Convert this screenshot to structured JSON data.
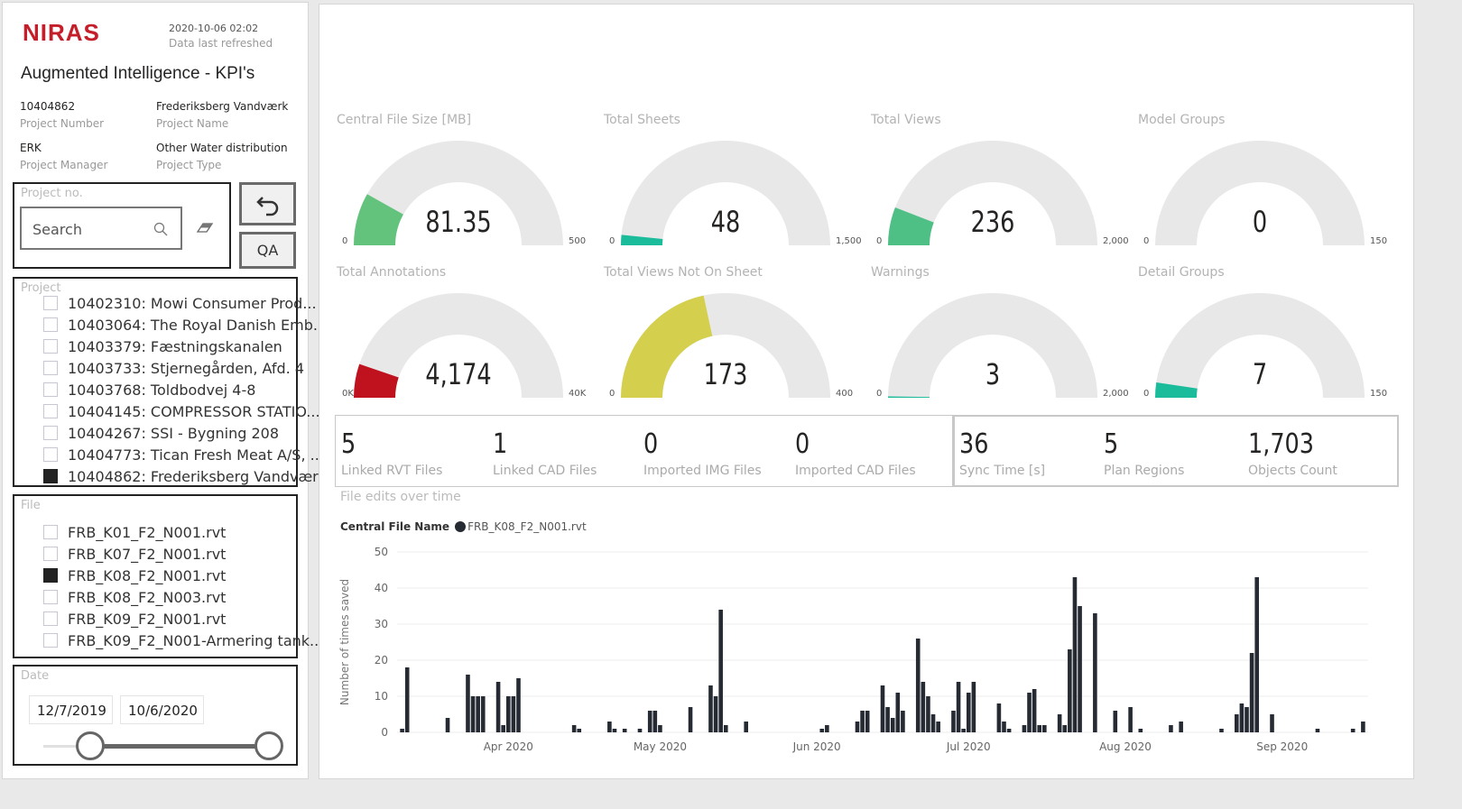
{
  "header": {
    "logo": "NIRAS",
    "refresh_date": "2020-10-06 02:02",
    "refresh_label": "Data last refreshed",
    "title": "Augmented Intelligence - KPI's"
  },
  "project_info": [
    {
      "value": "10404862",
      "label": "Project Number"
    },
    {
      "value": "Frederiksberg Vandværk",
      "label": "Project Name"
    },
    {
      "value": "ERK",
      "label": "Project Manager"
    },
    {
      "value": "Other Water distribution",
      "label": "Project Type"
    }
  ],
  "search": {
    "label": "Project no.",
    "placeholder": "Search"
  },
  "buttons": {
    "qa": "QA"
  },
  "project_slicer": {
    "label": "Project",
    "items": [
      {
        "label": "10402310: Mowi Consumer Prod...",
        "checked": false
      },
      {
        "label": "10403064: The Royal Danish Emb...",
        "checked": false
      },
      {
        "label": "10403379: Fæstningskanalen",
        "checked": false
      },
      {
        "label": "10403733: Stjernegården, Afd. 4",
        "checked": false
      },
      {
        "label": "10403768: Toldbodvej 4-8",
        "checked": false
      },
      {
        "label": "10404145: COMPRESSOR STATIO...",
        "checked": false
      },
      {
        "label": "10404267: SSI - Bygning 208",
        "checked": false
      },
      {
        "label": "10404773: Tican Fresh Meat A/S, ...",
        "checked": false
      },
      {
        "label": "10404862: Frederiksberg Vandværk",
        "checked": true
      }
    ]
  },
  "file_slicer": {
    "label": "File",
    "items": [
      {
        "label": "FRB_K01_F2_N001.rvt",
        "checked": false
      },
      {
        "label": "FRB_K07_F2_N001.rvt",
        "checked": false
      },
      {
        "label": "FRB_K08_F2_N001.rvt",
        "checked": true
      },
      {
        "label": "FRB_K08_F2_N003.rvt",
        "checked": false
      },
      {
        "label": "FRB_K09_F2_N001.rvt",
        "checked": false
      },
      {
        "label": "FRB_K09_F2_N001-Armering tank...",
        "checked": false
      }
    ]
  },
  "date_slicer": {
    "label": "Date",
    "start": "12/7/2019",
    "end": "10/6/2020"
  },
  "gauges": [
    {
      "title": "Central File Size [MB]",
      "value": 81.35,
      "display": "81.35",
      "min": "0",
      "max": "500",
      "max_value": 500,
      "color": "#63c37c"
    },
    {
      "title": "Total Sheets",
      "value": 48,
      "display": "48",
      "min": "0",
      "max": "1,500",
      "max_value": 1500,
      "color": "#1abc9c"
    },
    {
      "title": "Total Views",
      "value": 236,
      "display": "236",
      "min": "0",
      "max": "2,000",
      "max_value": 2000,
      "color": "#4fc085"
    },
    {
      "title": "Model Groups",
      "value": 0,
      "display": "0",
      "min": "0",
      "max": "150",
      "max_value": 150,
      "color": "#1abc9c"
    },
    {
      "title": "Total Annotations",
      "value": 4174,
      "display": "4,174",
      "min": "0K",
      "max": "40K",
      "max_value": 40000,
      "color": "#c0111f"
    },
    {
      "title": "Total Views Not On Sheet",
      "value": 173,
      "display": "173",
      "min": "0",
      "max": "400",
      "max_value": 400,
      "color": "#d4cf4c"
    },
    {
      "title": "Warnings",
      "value": 3,
      "display": "3",
      "min": "0",
      "max": "2,000",
      "max_value": 2000,
      "color": "#1abc9c"
    },
    {
      "title": "Detail Groups",
      "value": 7,
      "display": "7",
      "min": "0",
      "max": "150",
      "max_value": 150,
      "color": "#1abc9c"
    }
  ],
  "cards": [
    {
      "value": "5",
      "label": "Linked RVT Files"
    },
    {
      "value": "1",
      "label": "Linked CAD Files"
    },
    {
      "value": "0",
      "label": "Imported IMG Files"
    },
    {
      "value": "0",
      "label": "Imported CAD Files"
    },
    {
      "value": "36",
      "label": "Sync Time [s]"
    },
    {
      "value": "5",
      "label": "Plan Regions"
    },
    {
      "value": "1,703",
      "label": "Objects Count"
    }
  ],
  "chart_data": {
    "type": "bar",
    "title": "File edits over time",
    "legend_title": "Central File Name",
    "legend_position": "top-left",
    "series": [
      {
        "name": "FRB_K08_F2_N001.rvt",
        "color": "#252a33",
        "points": [
          [
            "2020-03-11",
            1
          ],
          [
            "2020-03-12",
            18
          ],
          [
            "2020-03-20",
            4
          ],
          [
            "2020-03-24",
            16
          ],
          [
            "2020-03-25",
            10
          ],
          [
            "2020-03-26",
            10
          ],
          [
            "2020-03-27",
            10
          ],
          [
            "2020-03-30",
            14
          ],
          [
            "2020-03-31",
            2
          ],
          [
            "2020-04-01",
            10
          ],
          [
            "2020-04-02",
            10
          ],
          [
            "2020-04-03",
            15
          ],
          [
            "2020-04-14",
            2
          ],
          [
            "2020-04-15",
            1
          ],
          [
            "2020-04-21",
            3
          ],
          [
            "2020-04-22",
            1
          ],
          [
            "2020-04-24",
            1
          ],
          [
            "2020-04-27",
            1
          ],
          [
            "2020-04-29",
            6
          ],
          [
            "2020-04-30",
            6
          ],
          [
            "2020-05-01",
            2
          ],
          [
            "2020-05-07",
            7
          ],
          [
            "2020-05-11",
            13
          ],
          [
            "2020-05-12",
            10
          ],
          [
            "2020-05-13",
            34
          ],
          [
            "2020-05-14",
            2
          ],
          [
            "2020-05-18",
            3
          ],
          [
            "2020-06-02",
            1
          ],
          [
            "2020-06-03",
            2
          ],
          [
            "2020-06-09",
            3
          ],
          [
            "2020-06-10",
            6
          ],
          [
            "2020-06-11",
            6
          ],
          [
            "2020-06-14",
            13
          ],
          [
            "2020-06-15",
            7
          ],
          [
            "2020-06-16",
            4
          ],
          [
            "2020-06-17",
            11
          ],
          [
            "2020-06-18",
            6
          ],
          [
            "2020-06-21",
            26
          ],
          [
            "2020-06-22",
            14
          ],
          [
            "2020-06-23",
            10
          ],
          [
            "2020-06-24",
            5
          ],
          [
            "2020-06-25",
            3
          ],
          [
            "2020-06-28",
            6
          ],
          [
            "2020-06-29",
            14
          ],
          [
            "2020-06-30",
            1
          ],
          [
            "2020-07-01",
            11
          ],
          [
            "2020-07-02",
            14
          ],
          [
            "2020-07-07",
            8
          ],
          [
            "2020-07-08",
            3
          ],
          [
            "2020-07-09",
            1
          ],
          [
            "2020-07-12",
            2
          ],
          [
            "2020-07-13",
            11
          ],
          [
            "2020-07-14",
            12
          ],
          [
            "2020-07-15",
            2
          ],
          [
            "2020-07-16",
            2
          ],
          [
            "2020-07-19",
            5
          ],
          [
            "2020-07-20",
            2
          ],
          [
            "2020-07-21",
            23
          ],
          [
            "2020-07-22",
            43
          ],
          [
            "2020-07-23",
            35
          ],
          [
            "2020-07-26",
            33
          ],
          [
            "2020-07-30",
            6
          ],
          [
            "2020-08-02",
            7
          ],
          [
            "2020-08-04",
            1
          ],
          [
            "2020-08-10",
            2
          ],
          [
            "2020-08-12",
            3
          ],
          [
            "2020-08-20",
            1
          ],
          [
            "2020-08-23",
            5
          ],
          [
            "2020-08-24",
            8
          ],
          [
            "2020-08-25",
            7
          ],
          [
            "2020-08-26",
            22
          ],
          [
            "2020-08-27",
            43
          ],
          [
            "2020-08-30",
            5
          ],
          [
            "2020-09-08",
            1
          ],
          [
            "2020-09-15",
            1
          ],
          [
            "2020-09-17",
            3
          ]
        ]
      }
    ],
    "xlabel": "",
    "ylabel": "Number of times saved",
    "xlim": [
      "2020-03-10",
      "2020-09-18"
    ],
    "ylim": [
      0,
      50
    ],
    "yticks": [
      0,
      10,
      20,
      30,
      40,
      50
    ],
    "xticks": [
      {
        "date": "2020-04-01",
        "label": "Apr 2020"
      },
      {
        "date": "2020-05-01",
        "label": "May 2020"
      },
      {
        "date": "2020-06-01",
        "label": "Jun 2020"
      },
      {
        "date": "2020-07-01",
        "label": "Jul 2020"
      },
      {
        "date": "2020-08-01",
        "label": "Aug 2020"
      },
      {
        "date": "2020-09-01",
        "label": "Sep 2020"
      }
    ],
    "grid": true
  }
}
